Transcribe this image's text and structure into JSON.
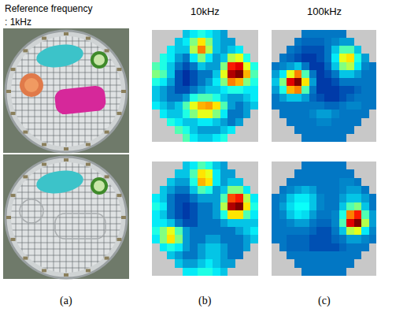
{
  "header": {
    "text": [
      "Reference frequency",
      ": 1kHz"
    ]
  },
  "panel_labels": [
    "(a)",
    "(b)",
    "(c)"
  ],
  "chart_data": [
    {
      "type": "heatmap",
      "title": "10kHz",
      "tick_labels": false,
      "zlim": [
        0,
        1
      ],
      "cells": [
        [
          null,
          null,
          null,
          null,
          0.3,
          0.35,
          0.4,
          0.35,
          0.3,
          0.25,
          null,
          null,
          null,
          null
        ],
        [
          null,
          null,
          null,
          0.3,
          0.35,
          0.5,
          0.65,
          0.5,
          0.3,
          0.25,
          0.25,
          null,
          null,
          null
        ],
        [
          null,
          null,
          0.35,
          0.3,
          0.3,
          0.55,
          0.75,
          0.55,
          0.3,
          0.25,
          0.3,
          0.35,
          null,
          null
        ],
        [
          null,
          0.4,
          0.35,
          0.25,
          0.2,
          0.35,
          0.5,
          0.35,
          0.25,
          0.3,
          0.55,
          0.6,
          0.4,
          null
        ],
        [
          0.45,
          0.4,
          0.3,
          0.2,
          0.15,
          0.2,
          0.3,
          0.25,
          0.25,
          0.5,
          0.85,
          0.9,
          0.6,
          0.4
        ],
        [
          0.5,
          0.45,
          0.3,
          0.15,
          0.1,
          0.15,
          0.2,
          0.2,
          0.3,
          0.6,
          0.95,
          1,
          0.7,
          0.45
        ],
        [
          0.4,
          0.35,
          0.25,
          0.15,
          0.1,
          0.15,
          0.2,
          0.25,
          0.35,
          0.5,
          0.75,
          0.7,
          0.5,
          0.4
        ],
        [
          0.3,
          0.25,
          0.2,
          0.15,
          0.15,
          0.2,
          0.25,
          0.3,
          0.3,
          0.35,
          0.4,
          0.4,
          0.35,
          0.35
        ],
        [
          0.3,
          0.25,
          0.2,
          0.2,
          0.25,
          0.4,
          0.45,
          0.45,
          0.4,
          0.3,
          0.25,
          0.25,
          0.3,
          0.35
        ],
        [
          0.35,
          0.3,
          0.25,
          0.3,
          0.45,
          0.6,
          0.7,
          0.72,
          0.65,
          0.45,
          0.25,
          0.2,
          0.25,
          0.3
        ],
        [
          null,
          0.35,
          0.3,
          0.3,
          0.4,
          0.5,
          0.6,
          0.6,
          0.5,
          0.35,
          0.2,
          0.2,
          0.25,
          null
        ],
        [
          null,
          null,
          0.4,
          0.35,
          0.3,
          0.3,
          0.35,
          0.35,
          0.3,
          0.25,
          0.2,
          0.25,
          null,
          null
        ],
        [
          null,
          null,
          null,
          0.45,
          0.4,
          0.3,
          0.25,
          0.25,
          0.25,
          0.3,
          0.35,
          null,
          null,
          null
        ],
        [
          null,
          null,
          null,
          null,
          0.45,
          0.35,
          0.3,
          0.3,
          0.35,
          0.4,
          null,
          null,
          null,
          null
        ]
      ]
    },
    {
      "type": "heatmap",
      "title": "100kHz",
      "tick_labels": false,
      "zlim": [
        0,
        1
      ],
      "cells": [
        [
          null,
          null,
          null,
          null,
          0.2,
          0.2,
          0.2,
          0.2,
          0.2,
          0.2,
          null,
          null,
          null,
          null
        ],
        [
          null,
          null,
          null,
          0.2,
          0.18,
          0.18,
          0.18,
          0.2,
          0.22,
          0.25,
          0.25,
          null,
          null,
          null
        ],
        [
          null,
          null,
          0.2,
          0.18,
          0.15,
          0.15,
          0.15,
          0.2,
          0.3,
          0.45,
          0.45,
          0.3,
          null,
          null
        ],
        [
          null,
          0.2,
          0.18,
          0.15,
          0.12,
          0.12,
          0.15,
          0.2,
          0.35,
          0.6,
          0.65,
          0.4,
          0.25,
          null
        ],
        [
          0.2,
          0.22,
          0.25,
          0.3,
          0.2,
          0.12,
          0.12,
          0.18,
          0.3,
          0.5,
          0.55,
          0.35,
          0.22,
          0.2
        ],
        [
          0.25,
          0.35,
          0.6,
          0.75,
          0.45,
          0.2,
          0.12,
          0.15,
          0.2,
          0.3,
          0.3,
          0.25,
          0.2,
          0.2
        ],
        [
          0.3,
          0.5,
          0.9,
          1,
          0.65,
          0.25,
          0.12,
          0.12,
          0.15,
          0.2,
          0.2,
          0.2,
          0.2,
          0.2
        ],
        [
          0.25,
          0.4,
          0.7,
          0.75,
          0.45,
          0.2,
          0.12,
          0.12,
          0.12,
          0.15,
          0.15,
          0.18,
          0.2,
          0.2
        ],
        [
          0.2,
          0.25,
          0.3,
          0.3,
          0.25,
          0.18,
          0.15,
          0.12,
          0.12,
          0.15,
          0.18,
          0.2,
          0.2,
          0.2
        ],
        [
          0.2,
          0.2,
          0.2,
          0.2,
          0.2,
          0.2,
          0.2,
          0.18,
          0.18,
          0.2,
          0.22,
          0.22,
          0.2,
          0.2
        ],
        [
          null,
          0.2,
          0.2,
          0.2,
          0.2,
          0.22,
          0.25,
          0.25,
          0.22,
          0.2,
          0.2,
          0.2,
          0.2,
          null
        ],
        [
          null,
          null,
          0.2,
          0.2,
          0.2,
          0.2,
          0.22,
          0.22,
          0.2,
          0.2,
          0.2,
          0.2,
          null,
          null
        ],
        [
          null,
          null,
          null,
          0.2,
          0.2,
          0.2,
          0.2,
          0.2,
          0.2,
          0.2,
          0.2,
          null,
          null,
          null
        ],
        [
          null,
          null,
          null,
          null,
          0.2,
          0.2,
          0.2,
          0.2,
          0.2,
          0.2,
          null,
          null,
          null,
          null
        ]
      ]
    },
    {
      "type": "heatmap",
      "tick_labels": false,
      "zlim": [
        0,
        1
      ],
      "cells": [
        [
          null,
          null,
          null,
          null,
          0.3,
          0.35,
          0.45,
          0.4,
          0.3,
          0.25,
          null,
          null,
          null,
          null
        ],
        [
          null,
          null,
          null,
          0.3,
          0.3,
          0.45,
          0.65,
          0.6,
          0.35,
          0.25,
          0.25,
          null,
          null,
          null
        ],
        [
          null,
          null,
          0.3,
          0.25,
          0.25,
          0.4,
          0.7,
          0.65,
          0.35,
          0.25,
          0.3,
          0.3,
          null,
          null
        ],
        [
          null,
          0.3,
          0.25,
          0.2,
          0.2,
          0.3,
          0.45,
          0.4,
          0.25,
          0.3,
          0.5,
          0.5,
          0.35,
          null
        ],
        [
          0.35,
          0.3,
          0.2,
          0.15,
          0.15,
          0.2,
          0.25,
          0.25,
          0.25,
          0.45,
          0.8,
          0.85,
          0.55,
          0.35
        ],
        [
          0.4,
          0.35,
          0.2,
          0.15,
          0.12,
          0.15,
          0.2,
          0.2,
          0.25,
          0.55,
          0.95,
          1,
          0.65,
          0.4
        ],
        [
          0.35,
          0.3,
          0.2,
          0.15,
          0.12,
          0.15,
          0.2,
          0.2,
          0.25,
          0.4,
          0.65,
          0.65,
          0.45,
          0.35
        ],
        [
          0.35,
          0.35,
          0.3,
          0.2,
          0.15,
          0.15,
          0.2,
          0.2,
          0.2,
          0.25,
          0.3,
          0.3,
          0.3,
          0.3
        ],
        [
          0.4,
          0.5,
          0.6,
          0.45,
          0.25,
          0.2,
          0.2,
          0.2,
          0.2,
          0.2,
          0.2,
          0.25,
          0.3,
          0.35
        ],
        [
          0.35,
          0.5,
          0.65,
          0.5,
          0.25,
          0.2,
          0.2,
          0.25,
          0.25,
          0.2,
          0.2,
          0.2,
          0.25,
          0.3
        ],
        [
          null,
          0.35,
          0.4,
          0.35,
          0.25,
          0.2,
          0.25,
          0.3,
          0.3,
          0.25,
          0.2,
          0.2,
          0.25,
          null
        ],
        [
          null,
          null,
          0.3,
          0.25,
          0.2,
          0.2,
          0.25,
          0.3,
          0.3,
          0.25,
          0.2,
          0.2,
          null,
          null
        ],
        [
          null,
          null,
          null,
          0.3,
          0.25,
          0.25,
          0.3,
          0.35,
          0.3,
          0.25,
          0.25,
          null,
          null,
          null
        ],
        [
          null,
          null,
          null,
          null,
          0.35,
          0.35,
          0.4,
          0.4,
          0.35,
          0.3,
          null,
          null,
          null,
          null
        ]
      ]
    },
    {
      "type": "heatmap",
      "tick_labels": false,
      "zlim": [
        0,
        1
      ],
      "cells": [
        [
          null,
          null,
          null,
          null,
          0.2,
          0.2,
          0.2,
          0.2,
          0.2,
          0.2,
          null,
          null,
          null,
          null
        ],
        [
          null,
          null,
          null,
          0.2,
          0.2,
          0.2,
          0.2,
          0.2,
          0.2,
          0.2,
          0.2,
          null,
          null,
          null
        ],
        [
          null,
          null,
          0.2,
          0.2,
          0.2,
          0.2,
          0.2,
          0.2,
          0.2,
          0.22,
          0.22,
          0.2,
          null,
          null
        ],
        [
          null,
          0.2,
          0.22,
          0.25,
          0.28,
          0.25,
          0.2,
          0.2,
          0.2,
          0.22,
          0.25,
          0.25,
          0.2,
          null
        ],
        [
          0.2,
          0.22,
          0.3,
          0.35,
          0.35,
          0.3,
          0.22,
          0.2,
          0.2,
          0.25,
          0.3,
          0.3,
          0.25,
          0.2
        ],
        [
          0.2,
          0.25,
          0.33,
          0.38,
          0.38,
          0.3,
          0.22,
          0.2,
          0.2,
          0.3,
          0.45,
          0.5,
          0.3,
          0.2
        ],
        [
          0.2,
          0.22,
          0.3,
          0.35,
          0.33,
          0.25,
          0.2,
          0.2,
          0.22,
          0.4,
          0.75,
          0.85,
          0.45,
          0.25
        ],
        [
          0.2,
          0.2,
          0.22,
          0.25,
          0.25,
          0.2,
          0.18,
          0.18,
          0.22,
          0.45,
          0.9,
          1,
          0.55,
          0.25
        ],
        [
          0.2,
          0.2,
          0.2,
          0.2,
          0.2,
          0.18,
          0.15,
          0.15,
          0.2,
          0.3,
          0.55,
          0.6,
          0.35,
          0.22
        ],
        [
          0.2,
          0.2,
          0.18,
          0.18,
          0.18,
          0.15,
          0.15,
          0.15,
          0.18,
          0.2,
          0.25,
          0.25,
          0.22,
          0.2
        ],
        [
          null,
          0.2,
          0.18,
          0.18,
          0.18,
          0.15,
          0.15,
          0.15,
          0.15,
          0.18,
          0.2,
          0.2,
          0.2,
          null
        ],
        [
          null,
          null,
          0.2,
          0.2,
          0.2,
          0.2,
          0.2,
          0.2,
          0.2,
          0.2,
          0.2,
          0.2,
          null,
          null
        ],
        [
          null,
          null,
          null,
          0.2,
          0.2,
          0.2,
          0.2,
          0.2,
          0.2,
          0.2,
          0.2,
          null,
          null,
          null
        ],
        [
          null,
          null,
          null,
          null,
          0.2,
          0.2,
          0.2,
          0.2,
          0.2,
          0.2,
          null,
          null,
          null,
          null
        ]
      ]
    }
  ]
}
